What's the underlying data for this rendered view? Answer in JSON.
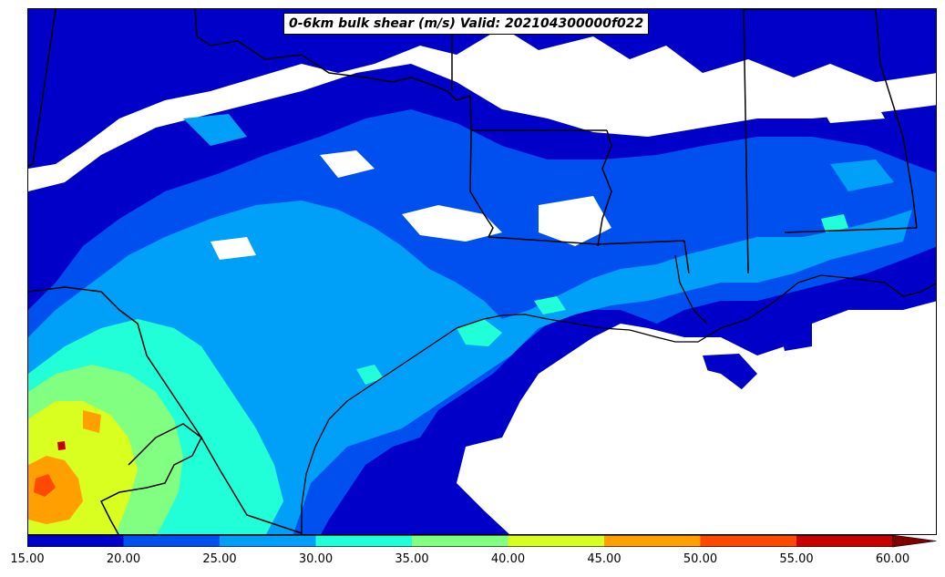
{
  "title": "0-6km bulk shear (m/s) Valid: 202104300000f022",
  "colorbar": {
    "ticks": [
      "15.00",
      "20.00",
      "25.00",
      "30.00",
      "35.00",
      "40.00",
      "45.00",
      "50.00",
      "55.00",
      "60.00"
    ],
    "colors": [
      "#0000c8",
      "#0050f0",
      "#00a0f8",
      "#20ffd8",
      "#80ff80",
      "#d8ff20",
      "#ffa000",
      "#ff4800",
      "#c80000",
      "#800000"
    ],
    "extend": "max"
  },
  "map": {
    "variable": "0-6km bulk shear",
    "units": "m/s",
    "region": "Texas and U.S. Gulf Coast",
    "features": [
      "state-borders",
      "coastline",
      "filled-contours"
    ]
  }
}
